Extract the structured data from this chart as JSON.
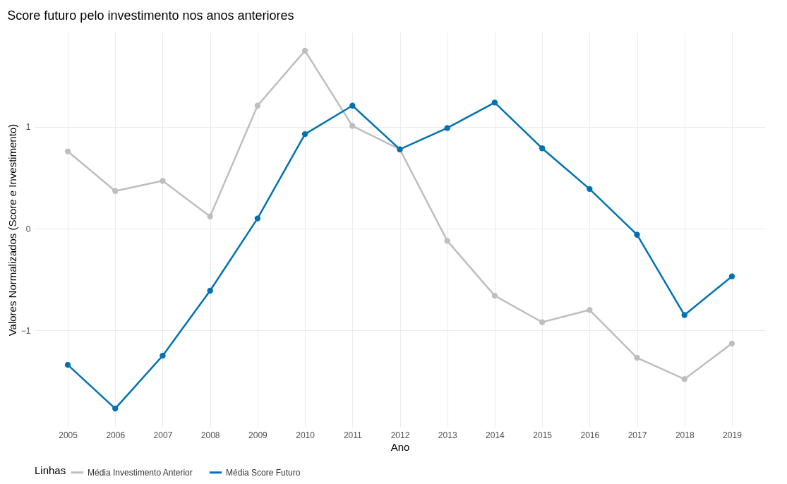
{
  "chart_data": {
    "type": "line",
    "title": "Score futuro pelo investimento nos anos anteriores",
    "xlabel": "Ano",
    "ylabel": "Valores Normalizados (Score e Investimento)",
    "legend_title": "Linhas",
    "x": [
      2005,
      2006,
      2007,
      2008,
      2009,
      2010,
      2011,
      2012,
      2013,
      2014,
      2015,
      2016,
      2017,
      2018,
      2019
    ],
    "series": [
      {
        "name": "Média Investimento Anterior",
        "color": "#bebebe",
        "values": [
          0.76,
          0.37,
          0.47,
          0.12,
          1.21,
          1.75,
          1.01,
          0.78,
          -0.12,
          -0.66,
          -0.92,
          -0.8,
          -1.27,
          -1.48,
          -1.13
        ]
      },
      {
        "name": "Média Score Futuro",
        "color": "#0072b2",
        "values": [
          -1.34,
          -1.77,
          -1.25,
          -0.61,
          0.1,
          0.93,
          1.21,
          0.78,
          0.99,
          1.24,
          0.79,
          0.39,
          -0.06,
          -0.85,
          -0.47
        ]
      }
    ],
    "xlim": [
      2004.3,
      2019.7
    ],
    "xticks": [
      2005,
      2006,
      2007,
      2008,
      2009,
      2010,
      2011,
      2012,
      2013,
      2014,
      2015,
      2016,
      2017,
      2018,
      2019
    ],
    "ylim": [
      -1.95,
      1.93
    ],
    "yticks": [
      -1,
      0,
      1
    ],
    "grid": true,
    "legend": "bottom",
    "marker": "circle",
    "line_style": "solid"
  }
}
